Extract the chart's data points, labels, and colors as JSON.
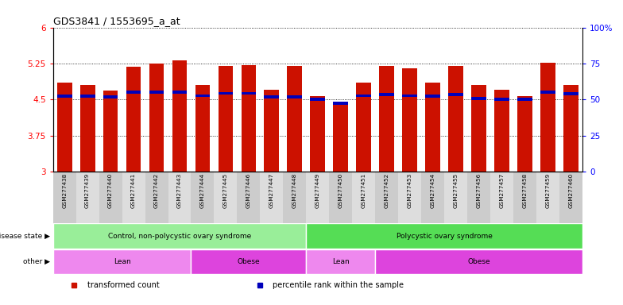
{
  "title": "GDS3841 / 1553695_a_at",
  "samples": [
    "GSM277438",
    "GSM277439",
    "GSM277440",
    "GSM277441",
    "GSM277442",
    "GSM277443",
    "GSM277444",
    "GSM277445",
    "GSM277446",
    "GSM277447",
    "GSM277448",
    "GSM277449",
    "GSM277450",
    "GSM277451",
    "GSM277452",
    "GSM277453",
    "GSM277454",
    "GSM277455",
    "GSM277456",
    "GSM277457",
    "GSM277458",
    "GSM277459",
    "GSM277460"
  ],
  "transformed_count": [
    4.85,
    4.8,
    4.68,
    5.18,
    5.25,
    5.32,
    4.8,
    5.2,
    5.22,
    4.7,
    5.2,
    4.57,
    4.45,
    4.85,
    5.2,
    5.15,
    4.85,
    5.2,
    4.8,
    4.7,
    4.57,
    5.27,
    4.8
  ],
  "percentile_rank": [
    4.57,
    4.57,
    4.55,
    4.65,
    4.65,
    4.65,
    4.58,
    4.63,
    4.63,
    4.55,
    4.55,
    4.5,
    4.42,
    4.58,
    4.6,
    4.58,
    4.57,
    4.6,
    4.52,
    4.5,
    4.5,
    4.65,
    4.62
  ],
  "ylim_left": [
    3,
    6
  ],
  "yticks_left": [
    3,
    3.75,
    4.5,
    5.25,
    6
  ],
  "ytick_labels_left": [
    "3",
    "3.75",
    "4.5",
    "5.25",
    "6"
  ],
  "yticks_right_vals": [
    0,
    25,
    50,
    75,
    100
  ],
  "ytick_labels_right": [
    "0",
    "25",
    "50",
    "75",
    "100%"
  ],
  "bar_color": "#CC1100",
  "blue_color": "#0000BB",
  "bar_width": 0.65,
  "groups_disease": [
    {
      "label": "Control, non-polycystic ovary syndrome",
      "start": 0,
      "end": 11,
      "color": "#99EE99"
    },
    {
      "label": "Polycystic ovary syndrome",
      "start": 11,
      "end": 23,
      "color": "#55DD55"
    }
  ],
  "groups_other": [
    {
      "label": "Lean",
      "start": 0,
      "end": 6,
      "color": "#EE88EE"
    },
    {
      "label": "Obese",
      "start": 6,
      "end": 11,
      "color": "#DD44DD"
    },
    {
      "label": "Lean",
      "start": 11,
      "end": 14,
      "color": "#EE88EE"
    },
    {
      "label": "Obese",
      "start": 14,
      "end": 23,
      "color": "#DD44DD"
    }
  ],
  "legend_items": [
    {
      "label": "transformed count",
      "color": "#CC1100"
    },
    {
      "label": "percentile rank within the sample",
      "color": "#0000BB"
    }
  ],
  "tick_bg_even": "#CCCCCC",
  "tick_bg_odd": "#DDDDDD"
}
